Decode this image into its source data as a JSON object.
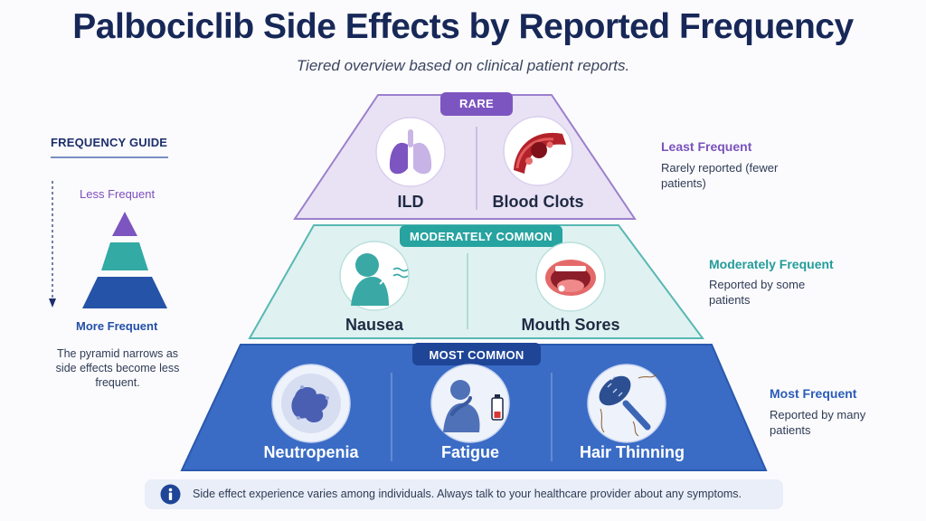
{
  "header": {
    "title": "Palbociclib Side Effects by Reported Frequency",
    "subtitle": "Tiered overview based on clinical patient reports."
  },
  "guide": {
    "title": "FREQUENCY GUIDE",
    "less_label": "Less Frequent",
    "more_label": "More Frequent",
    "note": "The pyramid narrows as side effects become less frequent."
  },
  "tiers": {
    "rare": {
      "label": "RARE",
      "items": [
        "ILD",
        "Blood Clots"
      ],
      "side_heading": "Least Frequent",
      "side_text": "Rarely reported (fewer patients)"
    },
    "moderate": {
      "label": "MODERATELY COMMON",
      "items": [
        "Nausea",
        "Mouth Sores"
      ],
      "side_heading": "Moderately Frequent",
      "side_text": "Reported by some patients"
    },
    "most": {
      "label": "MOST COMMON",
      "items": [
        "Neutropenia",
        "Fatigue",
        "Hair Thinning"
      ],
      "side_heading": "Most Frequent",
      "side_text": "Reported by many patients"
    }
  },
  "footer": {
    "notice": "Side effect experience varies among individuals. Always talk to your healthcare provider about any symptoms."
  },
  "icons": {
    "rare": [
      "lungs-icon",
      "blood-clot-icon"
    ],
    "moderate": [
      "nausea-icon",
      "mouth-sores-icon"
    ],
    "most": [
      "neutropenia-cell-icon",
      "fatigue-icon",
      "hair-brush-icon"
    ],
    "info": "info-icon"
  },
  "colors": {
    "rare": "#7d55c0",
    "moderate": "#27a3a0",
    "most": "#2c5eb6",
    "title": "#172858"
  }
}
